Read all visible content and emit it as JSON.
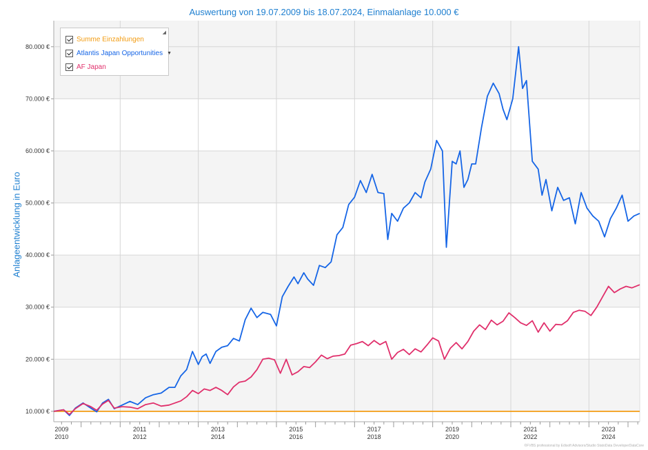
{
  "chart_data": {
    "type": "line",
    "title": "Auswertung von 19.07.2009 bis 18.07.2024, Einmalanlage 10.000 €",
    "ylabel": "Anlageentwicklung  in Euro",
    "xlabel": "",
    "ylim": [
      8000,
      85000
    ],
    "xlim": [
      2009.55,
      2024.55
    ],
    "y_ticks": [
      10000,
      20000,
      30000,
      40000,
      50000,
      60000,
      70000,
      80000
    ],
    "y_tick_labels": [
      "10.000 €",
      "20.000 €",
      "30.000 €",
      "40.000 €",
      "50.000 €",
      "60.000 €",
      "70.000 €",
      "80.000 €"
    ],
    "x_tick_labels": [
      {
        "x": 2009.75,
        "top": "2009",
        "bottom": "2010"
      },
      {
        "x": 2011.75,
        "top": "2011",
        "bottom": "2012"
      },
      {
        "x": 2013.75,
        "top": "2013",
        "bottom": "2014"
      },
      {
        "x": 2015.75,
        "top": "2015",
        "bottom": "2016"
      },
      {
        "x": 2017.75,
        "top": "2017",
        "bottom": "2018"
      },
      {
        "x": 2019.75,
        "top": "2019",
        "bottom": "2020"
      },
      {
        "x": 2021.75,
        "top": "2021",
        "bottom": "2022"
      },
      {
        "x": 2023.75,
        "top": "2023",
        "bottom": "2024"
      }
    ],
    "x_grid_years": [
      2011.25,
      2013.25,
      2015.25,
      2017.25,
      2019.25,
      2021.25,
      2023.25
    ],
    "series": [
      {
        "name": "Summe Einzahlungen",
        "color": "#f39c12",
        "x": [
          2009.55,
          2024.55
        ],
        "values": [
          10000,
          10000
        ]
      },
      {
        "name": "Atlantis Japan Opportunities",
        "color": "#1565e6",
        "x": [
          2009.55,
          2009.8,
          2009.95,
          2010.1,
          2010.3,
          2010.5,
          2010.65,
          2010.8,
          2010.95,
          2011.1,
          2011.3,
          2011.5,
          2011.7,
          2011.9,
          2012.1,
          2012.3,
          2012.5,
          2012.65,
          2012.8,
          2012.95,
          2013.1,
          2013.25,
          2013.35,
          2013.45,
          2013.55,
          2013.7,
          2013.85,
          2014.0,
          2014.15,
          2014.3,
          2014.45,
          2014.6,
          2014.75,
          2014.9,
          2015.1,
          2015.25,
          2015.4,
          2015.55,
          2015.7,
          2015.8,
          2015.95,
          2016.05,
          2016.2,
          2016.35,
          2016.5,
          2016.65,
          2016.8,
          2016.95,
          2017.1,
          2017.25,
          2017.4,
          2017.55,
          2017.7,
          2017.85,
          2018.0,
          2018.1,
          2018.2,
          2018.35,
          2018.5,
          2018.65,
          2018.8,
          2018.95,
          2019.05,
          2019.2,
          2019.35,
          2019.5,
          2019.6,
          2019.75,
          2019.85,
          2019.95,
          2020.05,
          2020.15,
          2020.25,
          2020.35,
          2020.5,
          2020.65,
          2020.8,
          2020.95,
          2021.05,
          2021.15,
          2021.3,
          2021.45,
          2021.55,
          2021.65,
          2021.8,
          2021.95,
          2022.05,
          2022.15,
          2022.3,
          2022.45,
          2022.6,
          2022.75,
          2022.9,
          2023.05,
          2023.2,
          2023.35,
          2023.5,
          2023.65,
          2023.8,
          2023.95,
          2024.1,
          2024.25,
          2024.4,
          2024.55
        ],
        "values": [
          10000,
          10300,
          9200,
          10600,
          11600,
          10600,
          9900,
          11600,
          12300,
          10500,
          11200,
          11900,
          11300,
          12600,
          13200,
          13500,
          14600,
          14600,
          16800,
          18000,
          21500,
          19000,
          20500,
          21000,
          19200,
          21500,
          22300,
          22600,
          24000,
          23500,
          27600,
          29800,
          28000,
          29000,
          28600,
          26400,
          32000,
          34000,
          35800,
          34500,
          36600,
          35400,
          34200,
          38000,
          37600,
          38700,
          43900,
          45300,
          49700,
          51100,
          54300,
          52000,
          55500,
          52000,
          51800,
          43000,
          48000,
          46500,
          49000,
          50000,
          52000,
          51000,
          54000,
          56500,
          62000,
          60000,
          41500,
          58000,
          57500,
          60000,
          53000,
          54500,
          57500,
          57500,
          64500,
          70500,
          73000,
          71000,
          68000,
          66000,
          70000,
          80000,
          72000,
          73500,
          58000,
          56500,
          51500,
          54500,
          48500,
          53000,
          50500,
          51000,
          46000,
          52000,
          49000,
          47500,
          46500,
          43500,
          47000,
          49000,
          51500,
          46500,
          47500,
          48000
        ]
      },
      {
        "name": "AF Japan",
        "color": "#e02f6b",
        "x": [
          2009.55,
          2009.8,
          2009.95,
          2010.1,
          2010.3,
          2010.5,
          2010.65,
          2010.8,
          2010.95,
          2011.1,
          2011.3,
          2011.5,
          2011.7,
          2011.9,
          2012.1,
          2012.3,
          2012.5,
          2012.65,
          2012.8,
          2012.95,
          2013.1,
          2013.25,
          2013.4,
          2013.55,
          2013.7,
          2013.85,
          2014.0,
          2014.15,
          2014.3,
          2014.45,
          2014.6,
          2014.75,
          2014.9,
          2015.05,
          2015.2,
          2015.35,
          2015.5,
          2015.65,
          2015.8,
          2015.95,
          2016.1,
          2016.25,
          2016.4,
          2016.55,
          2016.7,
          2016.85,
          2017.0,
          2017.15,
          2017.3,
          2017.45,
          2017.6,
          2017.75,
          2017.9,
          2018.05,
          2018.2,
          2018.35,
          2018.5,
          2018.65,
          2018.8,
          2018.95,
          2019.1,
          2019.25,
          2019.4,
          2019.55,
          2019.7,
          2019.85,
          2020.0,
          2020.15,
          2020.3,
          2020.45,
          2020.6,
          2020.75,
          2020.9,
          2021.05,
          2021.2,
          2021.35,
          2021.5,
          2021.65,
          2021.8,
          2021.95,
          2022.1,
          2022.25,
          2022.4,
          2022.55,
          2022.7,
          2022.85,
          2023.0,
          2023.15,
          2023.3,
          2023.45,
          2023.6,
          2023.75,
          2023.9,
          2024.05,
          2024.2,
          2024.35,
          2024.55
        ],
        "values": [
          10000,
          10300,
          9400,
          10500,
          11500,
          10900,
          10200,
          11400,
          12100,
          10600,
          10900,
          10800,
          10500,
          11300,
          11600,
          11000,
          11200,
          11600,
          12000,
          12800,
          14000,
          13400,
          14300,
          14000,
          14600,
          14000,
          13200,
          14700,
          15600,
          15800,
          16600,
          18000,
          20000,
          20200,
          19900,
          17300,
          20000,
          17000,
          17600,
          18600,
          18400,
          19500,
          20800,
          20100,
          20600,
          20700,
          21000,
          22700,
          23000,
          23400,
          22600,
          23600,
          22800,
          23400,
          20000,
          21300,
          21900,
          20900,
          22000,
          21400,
          22700,
          24100,
          23500,
          20000,
          22100,
          23200,
          22000,
          23400,
          25400,
          26600,
          25700,
          27500,
          26600,
          27300,
          28900,
          28000,
          27000,
          26500,
          27400,
          25200,
          27000,
          25400,
          26700,
          26600,
          27400,
          29000,
          29400,
          29200,
          28400,
          30000,
          32000,
          34000,
          32800,
          33500,
          34000,
          33700,
          34300
        ]
      }
    ]
  },
  "legend": {
    "items": [
      {
        "label": "Summe Einzahlungen",
        "color": "#f39c12"
      },
      {
        "label": "Atlantis Japan Opportunities",
        "color": "#1565e6"
      },
      {
        "label": "AF Japan",
        "color": "#e02f6b"
      }
    ]
  },
  "footer": {
    "credit": "©FVBS professional by Edisoft Advisors/Studio StatoData DeveloperDataCore"
  }
}
